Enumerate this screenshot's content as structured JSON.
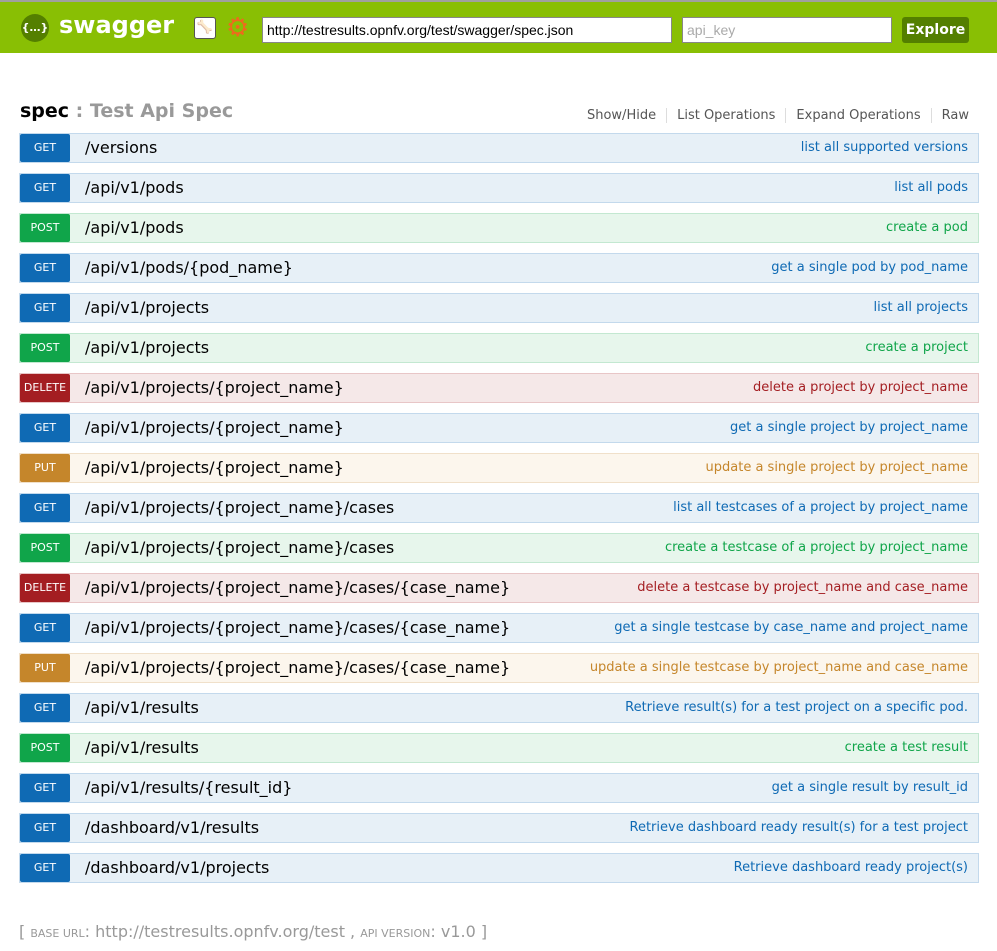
{
  "header": {
    "logo_icon": "braces-icon",
    "logo_text": "swagger",
    "url_value": "http://testresults.opnfv.org/test/swagger/spec.json",
    "api_key_placeholder": "api_key",
    "explore_label": "Explore",
    "brand_color": "#89bf04"
  },
  "spec": {
    "name": "spec",
    "separator": " : ",
    "title": "Test Api Spec",
    "actions": [
      "Show/Hide",
      "List Operations",
      "Expand Operations",
      "Raw"
    ]
  },
  "method_colors": {
    "GET": {
      "badge": "#0f6ab4",
      "bg": "#e7f0f7",
      "border": "#c3d9ec",
      "text": "#0f6ab4"
    },
    "POST": {
      "badge": "#10a54a",
      "bg": "#e7f6ec",
      "border": "#c3e8d1",
      "text": "#10a54a"
    },
    "DELETE": {
      "badge": "#a41e22",
      "bg": "#f5e8e8",
      "border": "#e8c6c7",
      "text": "#a41e22"
    },
    "PUT": {
      "badge": "#c5862b",
      "bg": "#fcf6ed",
      "border": "#f0e0ca",
      "text": "#c5862b"
    }
  },
  "endpoints": [
    {
      "method": "GET",
      "path": "/versions",
      "desc": "list all supported versions"
    },
    {
      "method": "GET",
      "path": "/api/v1/pods",
      "desc": "list all pods"
    },
    {
      "method": "POST",
      "path": "/api/v1/pods",
      "desc": "create a pod"
    },
    {
      "method": "GET",
      "path": "/api/v1/pods/{pod_name}",
      "desc": "get a single pod by pod_name"
    },
    {
      "method": "GET",
      "path": "/api/v1/projects",
      "desc": "list all projects"
    },
    {
      "method": "POST",
      "path": "/api/v1/projects",
      "desc": "create a project"
    },
    {
      "method": "DELETE",
      "path": "/api/v1/projects/{project_name}",
      "desc": "delete a project by project_name"
    },
    {
      "method": "GET",
      "path": "/api/v1/projects/{project_name}",
      "desc": "get a single project by project_name"
    },
    {
      "method": "PUT",
      "path": "/api/v1/projects/{project_name}",
      "desc": "update a single project by project_name"
    },
    {
      "method": "GET",
      "path": "/api/v1/projects/{project_name}/cases",
      "desc": "list all testcases of a project by project_name"
    },
    {
      "method": "POST",
      "path": "/api/v1/projects/{project_name}/cases",
      "desc": "create a testcase of a project by project_name"
    },
    {
      "method": "DELETE",
      "path": "/api/v1/projects/{project_name}/cases/{case_name}",
      "desc": "delete a testcase by project_name and case_name"
    },
    {
      "method": "GET",
      "path": "/api/v1/projects/{project_name}/cases/{case_name}",
      "desc": "get a single testcase by case_name and project_name"
    },
    {
      "method": "PUT",
      "path": "/api/v1/projects/{project_name}/cases/{case_name}",
      "desc": "update a single testcase by project_name and case_name"
    },
    {
      "method": "GET",
      "path": "/api/v1/results",
      "desc": "Retrieve result(s) for a test project on a specific pod."
    },
    {
      "method": "POST",
      "path": "/api/v1/results",
      "desc": "create a test result"
    },
    {
      "method": "GET",
      "path": "/api/v1/results/{result_id}",
      "desc": "get a single result by result_id"
    },
    {
      "method": "GET",
      "path": "/dashboard/v1/results",
      "desc": "Retrieve dashboard ready result(s) for a test project"
    },
    {
      "method": "GET",
      "path": "/dashboard/v1/projects",
      "desc": "Retrieve dashboard ready project(s)"
    }
  ],
  "footer": {
    "open": "[ ",
    "base_url_label": "base url",
    "base_url": "http://testresults.opnfv.org/test",
    "comma": " , ",
    "api_version_label": "api version",
    "api_version": "v1.0",
    "close": " ]"
  }
}
